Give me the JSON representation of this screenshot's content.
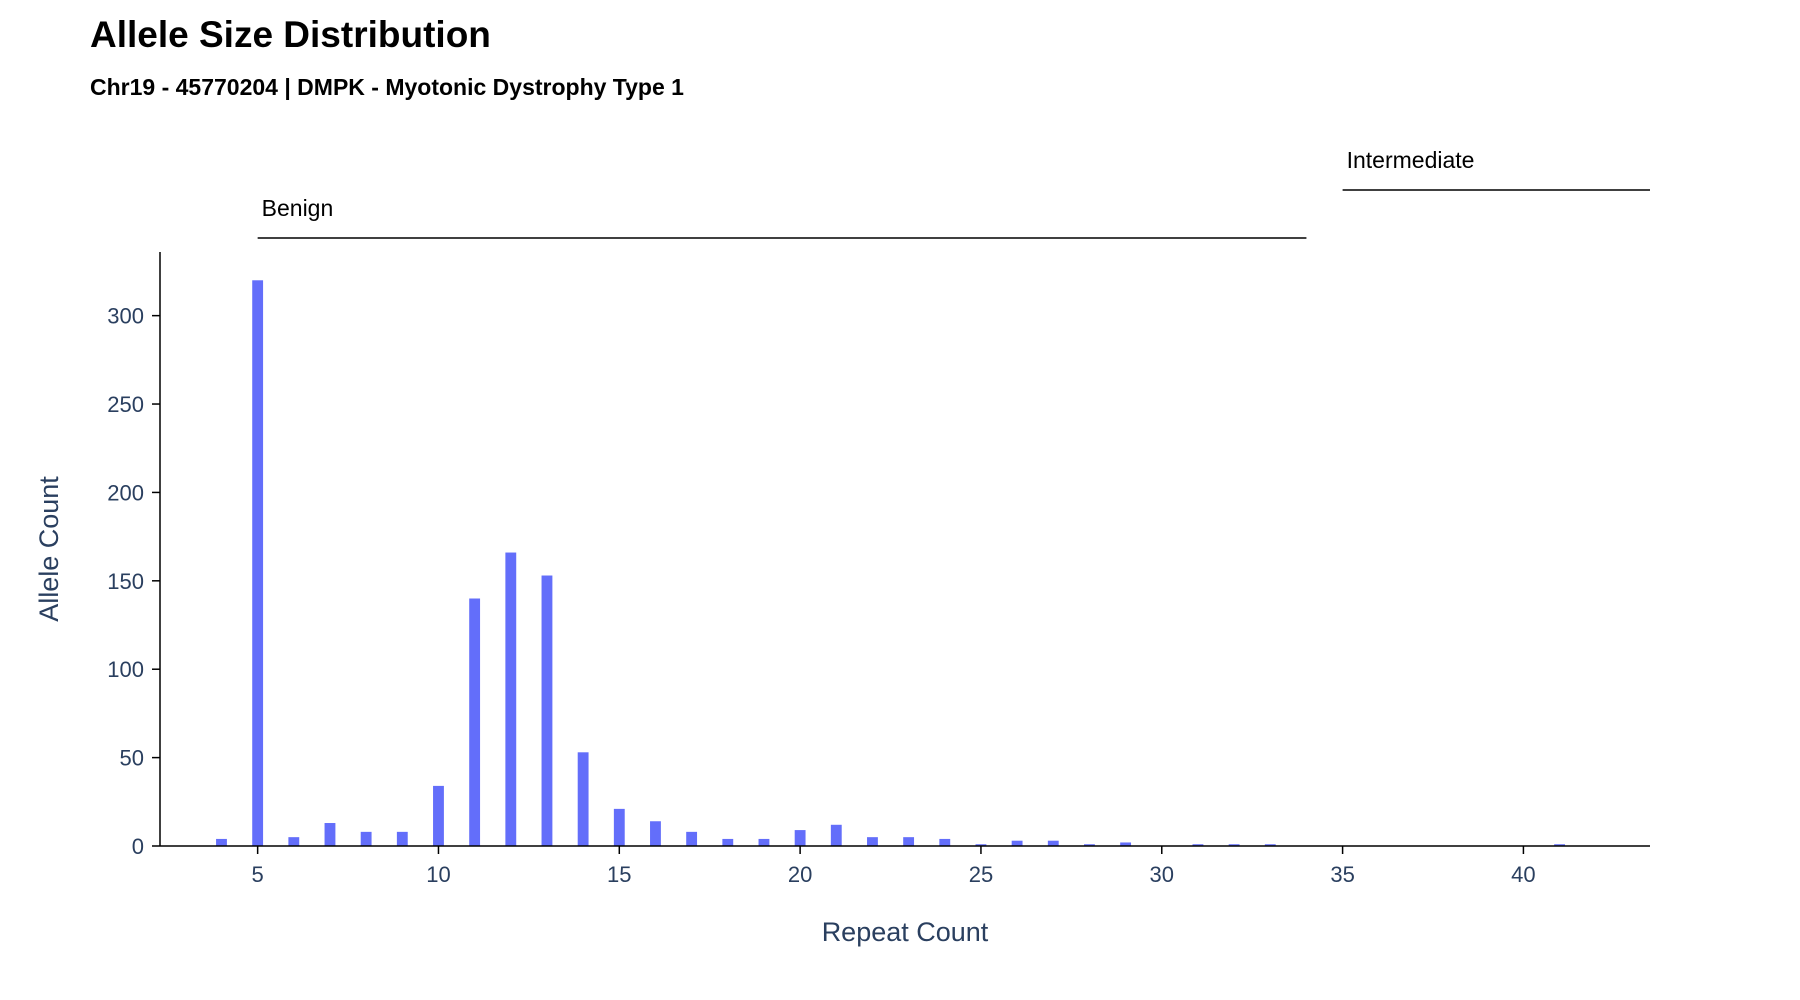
{
  "chart_data": {
    "type": "bar",
    "title": "Allele Size Distribution",
    "subtitle": "Chr19 - 45770204 | DMPK - Myotonic Dystrophy Type 1",
    "xlabel": "Repeat Count",
    "ylabel": "Allele Count",
    "xlim": [
      2.3,
      43.5
    ],
    "ylim": [
      0,
      336
    ],
    "x": [
      4,
      5,
      6,
      7,
      8,
      9,
      10,
      11,
      12,
      13,
      14,
      15,
      16,
      17,
      18,
      19,
      20,
      21,
      22,
      23,
      24,
      25,
      26,
      27,
      28,
      29,
      31,
      32,
      33,
      41
    ],
    "values": [
      4,
      320,
      5,
      13,
      8,
      8,
      34,
      140,
      166,
      153,
      53,
      21,
      14,
      8,
      4,
      4,
      9,
      12,
      5,
      5,
      4,
      1,
      3,
      3,
      1,
      2,
      1,
      1,
      1,
      1
    ],
    "x_ticks": [
      5,
      10,
      15,
      20,
      25,
      30,
      35,
      40
    ],
    "y_ticks": [
      0,
      50,
      100,
      150,
      200,
      250,
      300
    ],
    "grid": false,
    "bar_color": "#636efa",
    "regions": [
      {
        "label": "Benign",
        "start": 5,
        "end": 34
      },
      {
        "label": "Intermediate",
        "start": 35,
        "end": 43.5
      }
    ]
  }
}
